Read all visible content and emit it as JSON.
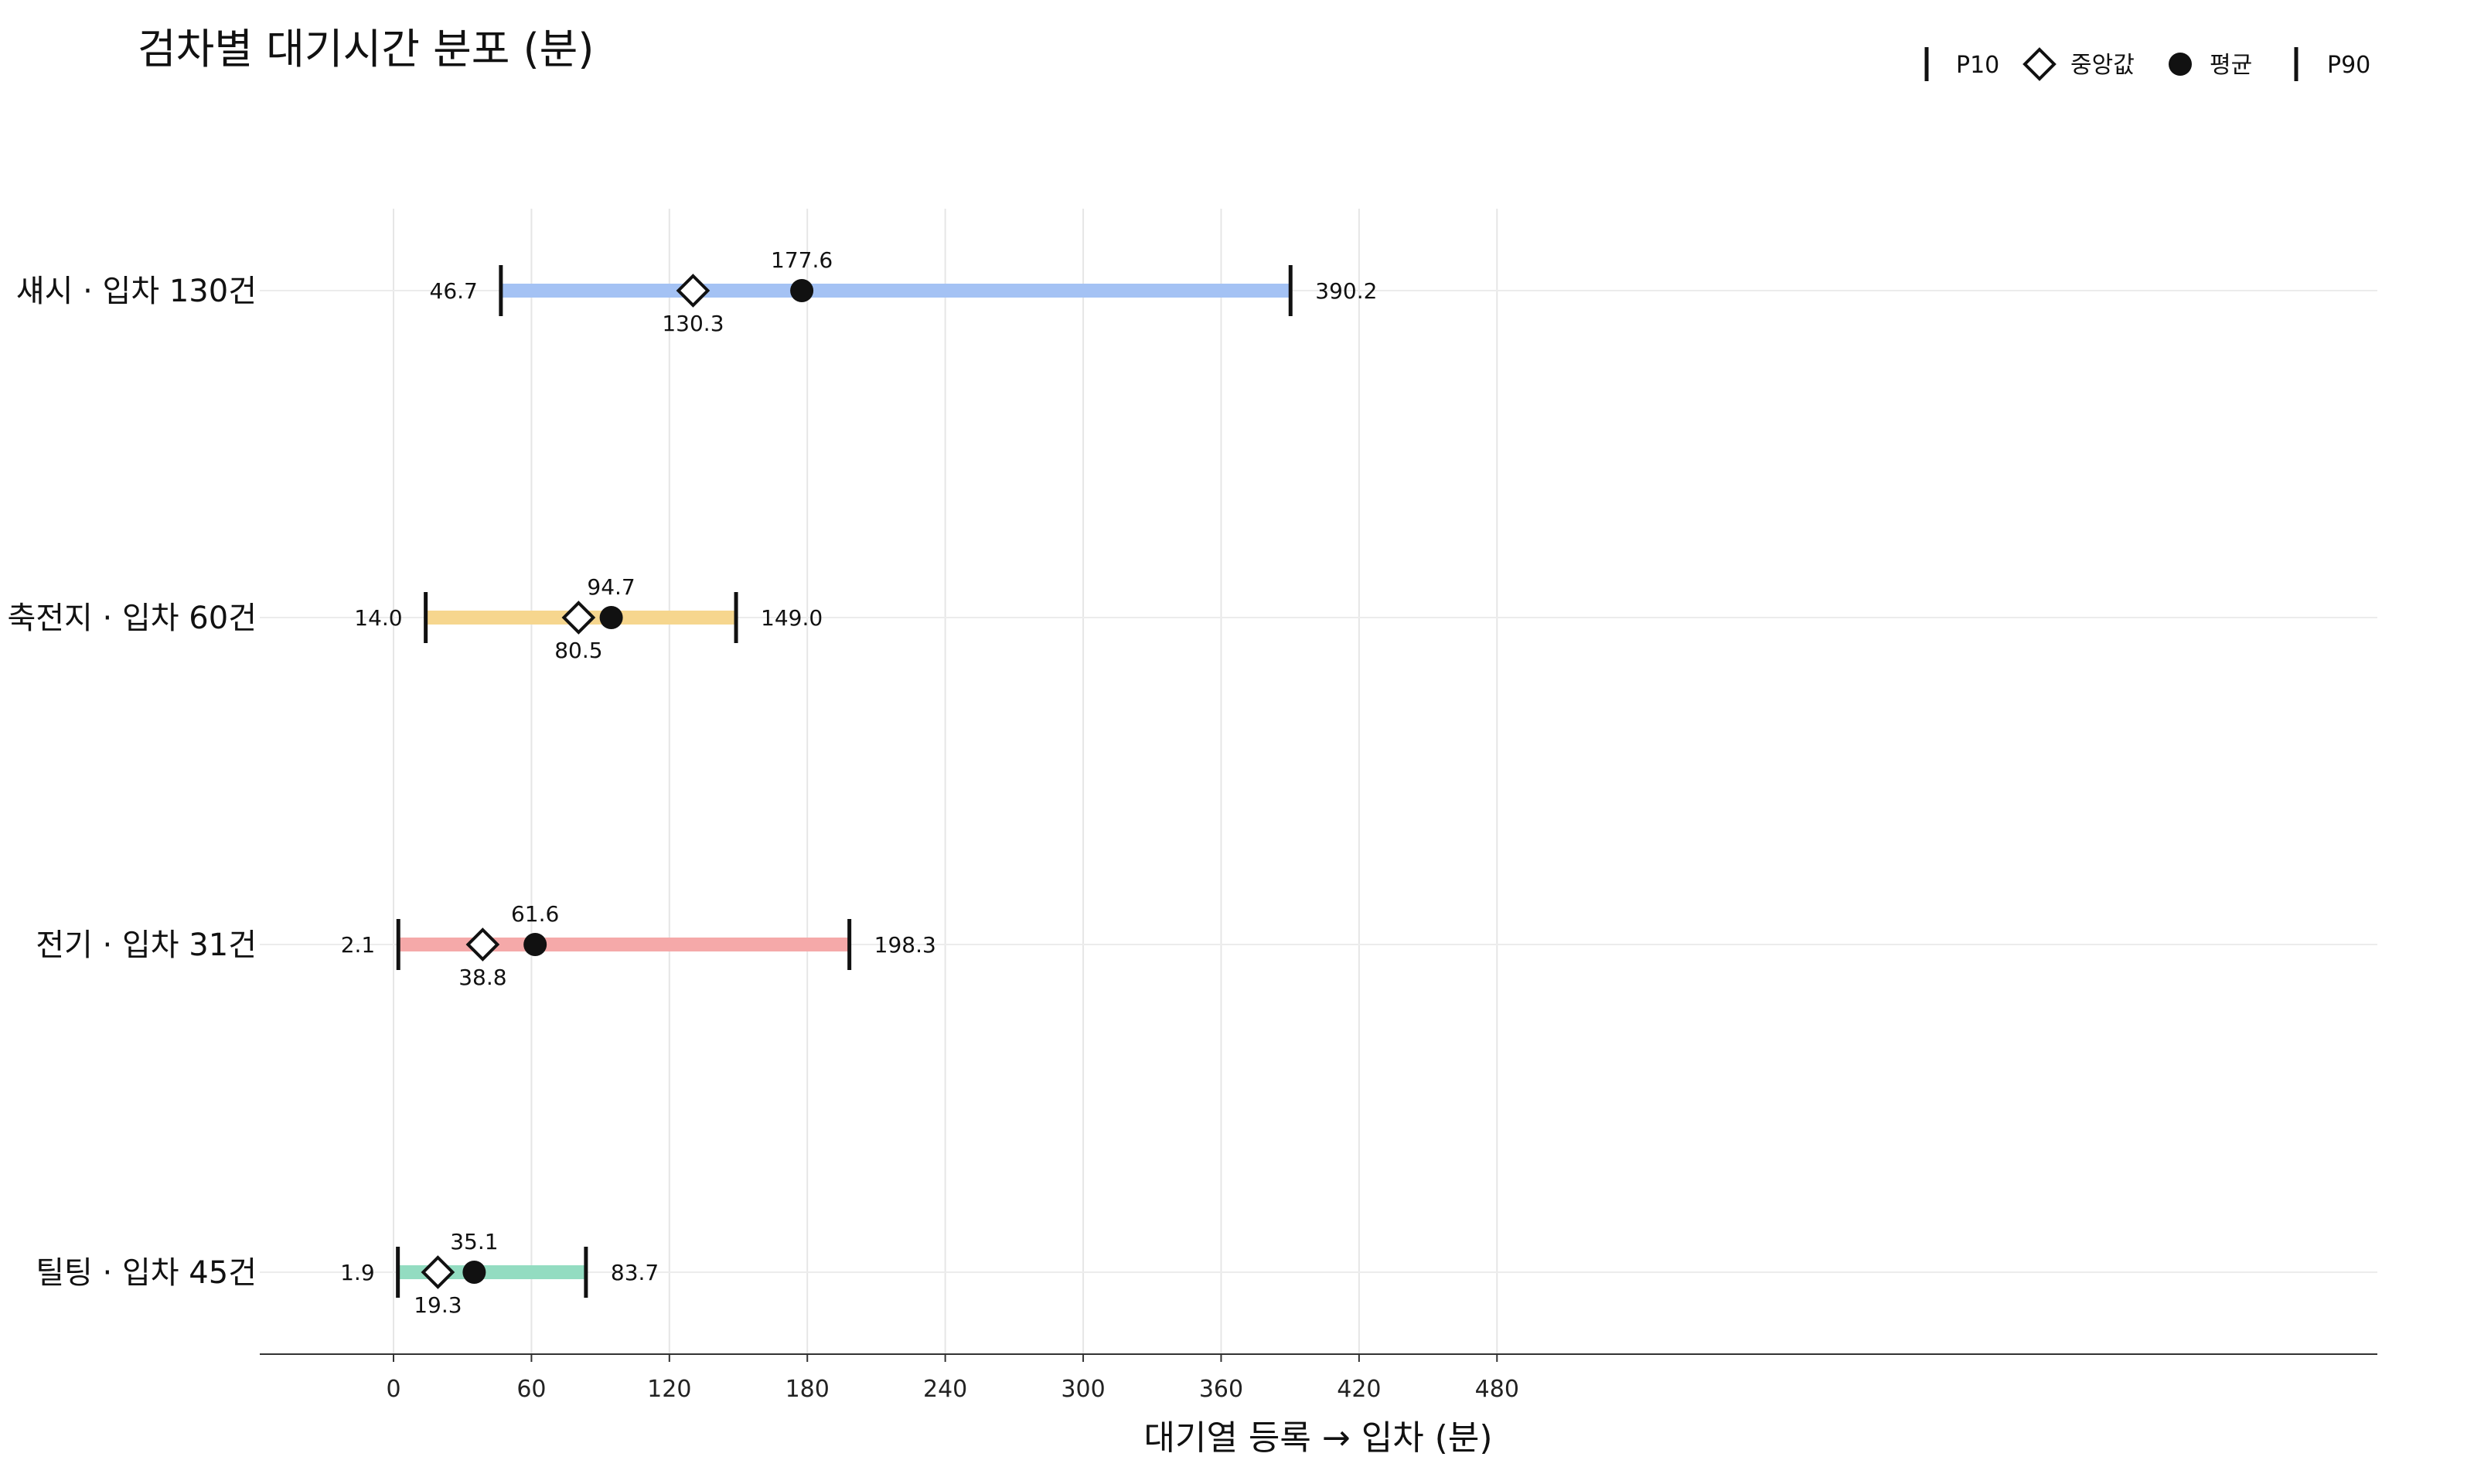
{
  "chart_data": {
    "type": "range-dot",
    "title": "검차별 대기시간 분포 (분)",
    "xlabel": "대기열 등록 → 입차 (분)",
    "xlim": [
      -35,
      520
    ],
    "xticks": [
      0,
      60,
      120,
      180,
      240,
      300,
      360,
      420,
      480
    ],
    "grid": true,
    "legend": {
      "placement": "top-right",
      "items": [
        {
          "marker": "bar",
          "label": "P10"
        },
        {
          "marker": "diamond",
          "label": "중앙값"
        },
        {
          "marker": "dot",
          "label": "평균"
        },
        {
          "marker": "bar",
          "label": "P90"
        }
      ]
    },
    "categories": [
      {
        "label": "섀시 · 입차 130건",
        "p10": 46.7,
        "median": 130.3,
        "mean": 177.6,
        "p90": 390.2,
        "color": "#a4c2f4"
      },
      {
        "label": "축전지 · 입차 60건",
        "p10": 14.0,
        "median": 80.5,
        "mean": 94.7,
        "p90": 149.0,
        "color": "#f6d68e"
      },
      {
        "label": "전기 · 입차 31건",
        "p10": 2.1,
        "median": 38.8,
        "mean": 61.6,
        "p90": 198.3,
        "color": "#f5a9a9"
      },
      {
        "label": "틸팅 · 입차 45건",
        "p10": 1.9,
        "median": 19.3,
        "mean": 35.1,
        "p90": 83.7,
        "color": "#93dcc1"
      }
    ]
  }
}
